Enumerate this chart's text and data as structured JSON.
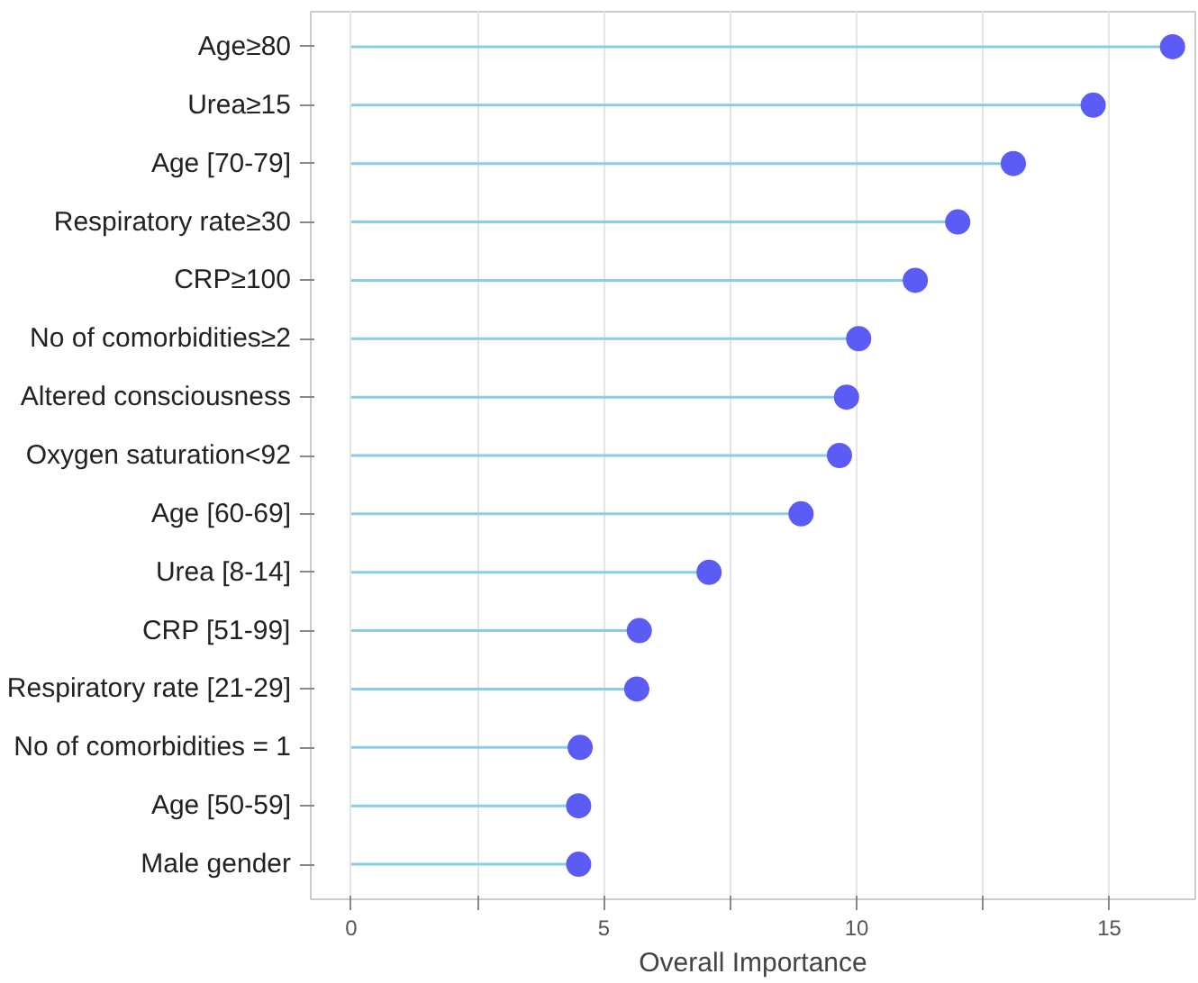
{
  "chart_data": {
    "type": "lollipop",
    "orientation": "horizontal",
    "xlabel": "Overall Importance",
    "categories": [
      "Age≥80",
      "Urea≥15",
      "Age [70-79]",
      "Respiratory rate≥30",
      "CRP≥100",
      "No of comorbidities≥2",
      "Altered consciousness",
      "Oxygen saturation<92",
      "Age [60-69]",
      "Urea [8-14]",
      "CRP [51-99]",
      "Respiratory rate [21-29]",
      "No of comorbidities = 1",
      "Age [50-59]",
      "Male gender"
    ],
    "values": [
      16.25,
      14.68,
      13.1,
      12.0,
      11.16,
      10.04,
      9.8,
      9.66,
      8.9,
      7.08,
      5.7,
      5.65,
      4.53,
      4.5,
      4.5
    ],
    "color": "#5b5bf5",
    "xlim": [
      -0.8,
      16.7
    ],
    "xticks": [
      0,
      {
        "value": 2.5,
        "label": null
      },
      5,
      {
        "value": 7.5,
        "label": null
      },
      10,
      {
        "value": 12.5,
        "label": null
      },
      15
    ],
    "grid": "x",
    "marker": "circle"
  }
}
